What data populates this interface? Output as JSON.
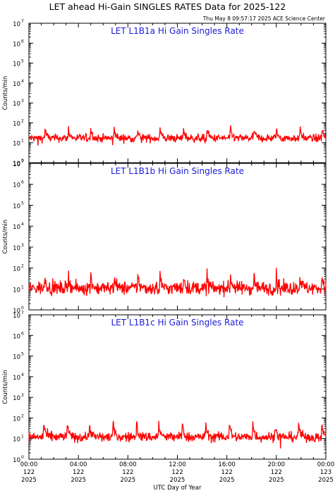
{
  "title": "LET ahead Hi-Gain SINGLES RATES Data for 2025-122",
  "timestamp": "Thu May  8 09:57:17 2025 ACE Science Center",
  "xlabel": "UTC Day of Year",
  "colors": {
    "panel_title": "#1c1cd8",
    "series": "#ff0000",
    "axes": "#000000"
  },
  "chart_data": [
    {
      "type": "line",
      "title": "LET L1B1a Hi Gain Singles Rate",
      "ylabel": "Counts/min",
      "yscale": "log",
      "ylim": [
        1,
        10000000
      ],
      "xlim": [
        0,
        24
      ],
      "baseline": 17,
      "noise": 0.1,
      "peak_hours": [
        1.3,
        3.2,
        5.0,
        6.9,
        8.8,
        10.6,
        12.5,
        14.4,
        16.3,
        18.2,
        20.0,
        21.9,
        23.7
      ],
      "peak_value": 50,
      "series": [
        {
          "name": "",
          "x": [
            0,
            24
          ],
          "y_typical": [
            17,
            17
          ]
        }
      ]
    },
    {
      "type": "line",
      "title": "LET L1B1b Hi Gain Singles Rate",
      "ylabel": "Counts/min",
      "yscale": "log",
      "ylim": [
        1,
        10000000
      ],
      "xlim": [
        0,
        24
      ],
      "baseline": 11,
      "noise": 0.16,
      "peak_hours": [
        1.3,
        3.2,
        5.0,
        6.9,
        8.8,
        10.6,
        12.5,
        14.4,
        16.3,
        18.2,
        20.0,
        21.9,
        23.7
      ],
      "peak_value": 45,
      "series": [
        {
          "name": "",
          "x": [
            0,
            24
          ],
          "y_typical": [
            11,
            11
          ]
        }
      ]
    },
    {
      "type": "line",
      "title": "LET L1B1c Hi Gain Singles Rate",
      "ylabel": "Counts/min",
      "yscale": "log",
      "ylim": [
        1,
        10000000
      ],
      "xlim": [
        0,
        24
      ],
      "baseline": 12,
      "noise": 0.12,
      "peak_hours": [
        1.2,
        3.1,
        4.9,
        6.8,
        8.7,
        10.5,
        12.4,
        14.3,
        16.2,
        18.1,
        19.9,
        21.8,
        23.7
      ],
      "peak_value": 55,
      "series": [
        {
          "name": "",
          "x": [
            0,
            24
          ],
          "y_typical": [
            12,
            12
          ]
        }
      ]
    }
  ],
  "yticks": [
    {
      "base": "10",
      "exp": "0"
    },
    {
      "base": "10",
      "exp": "1"
    },
    {
      "base": "10",
      "exp": "2"
    },
    {
      "base": "10",
      "exp": "3"
    },
    {
      "base": "10",
      "exp": "4"
    },
    {
      "base": "10",
      "exp": "5"
    },
    {
      "base": "10",
      "exp": "6"
    },
    {
      "base": "10",
      "exp": "7"
    }
  ],
  "xticks": [
    {
      "hour": 0,
      "time": "00:00",
      "day": "122",
      "year": "2025"
    },
    {
      "hour": 4,
      "time": "04:00",
      "day": "122",
      "year": "2025"
    },
    {
      "hour": 8,
      "time": "08:00",
      "day": "122",
      "year": "2025"
    },
    {
      "hour": 12,
      "time": "12:00",
      "day": "122",
      "year": "2025"
    },
    {
      "hour": 16,
      "time": "16:00",
      "day": "122",
      "year": "2025"
    },
    {
      "hour": 20,
      "time": "20:00",
      "day": "122",
      "year": "2025"
    },
    {
      "hour": 24,
      "time": "00:00",
      "day": "123",
      "year": "2025"
    }
  ]
}
